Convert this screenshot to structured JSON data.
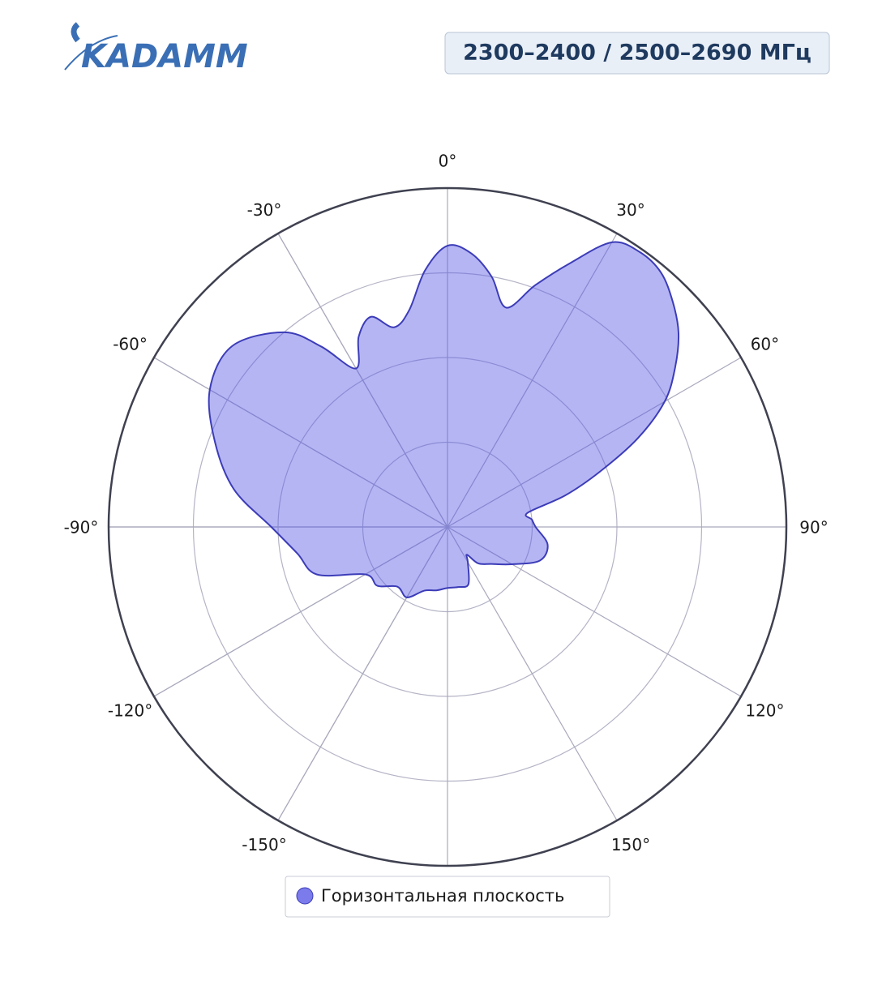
{
  "logo": "KADAMM",
  "badge": "2300–2400 / 2500–2690 МГц",
  "chart_data": {
    "type": "polar",
    "direction": "clockwise",
    "zero": "top",
    "rlim": [
      0,
      1
    ],
    "rgrid": [
      0.25,
      0.5,
      0.75
    ],
    "thetaticks": [
      {
        "value": 0,
        "label": "0°"
      },
      {
        "value": 30,
        "label": "30°"
      },
      {
        "value": 60,
        "label": "60°"
      },
      {
        "value": 90,
        "label": "90°"
      },
      {
        "value": 120,
        "label": "120°"
      },
      {
        "value": 150,
        "label": "150°"
      },
      {
        "value": -150,
        "label": "-150°"
      },
      {
        "value": -120,
        "label": "-120°"
      },
      {
        "value": -90,
        "label": "-90°"
      },
      {
        "value": -60,
        "label": "-60°"
      },
      {
        "value": -30,
        "label": "-30°"
      }
    ],
    "series": [
      {
        "name": "Горизонтальная плоскость",
        "color": "#5a5ae6",
        "line_color": "#3c3cb8",
        "theta": [
          -180,
          -170,
          -160,
          -150,
          -140,
          -130,
          -120,
          -110,
          -100,
          -90,
          -80,
          -70,
          -60,
          -50,
          -40,
          -35,
          -30,
          -25,
          -20,
          -15,
          -10,
          -5,
          0,
          5,
          10,
          15,
          20,
          25,
          30,
          35,
          40,
          45,
          50,
          55,
          60,
          65,
          70,
          75,
          80,
          85,
          90,
          100,
          110,
          120,
          130,
          140,
          145,
          150,
          160,
          170
        ],
        "r": [
          0.18,
          0.19,
          0.2,
          0.24,
          0.23,
          0.27,
          0.28,
          0.41,
          0.45,
          0.52,
          0.64,
          0.73,
          0.81,
          0.83,
          0.75,
          0.65,
          0.54,
          0.62,
          0.66,
          0.61,
          0.65,
          0.76,
          0.83,
          0.81,
          0.75,
          0.67,
          0.76,
          0.86,
          0.97,
          0.99,
          0.98,
          0.94,
          0.89,
          0.82,
          0.74,
          0.62,
          0.48,
          0.36,
          0.24,
          0.25,
          0.26,
          0.3,
          0.29,
          0.22,
          0.17,
          0.14,
          0.1,
          0.12,
          0.18,
          0.18
        ]
      }
    ]
  }
}
